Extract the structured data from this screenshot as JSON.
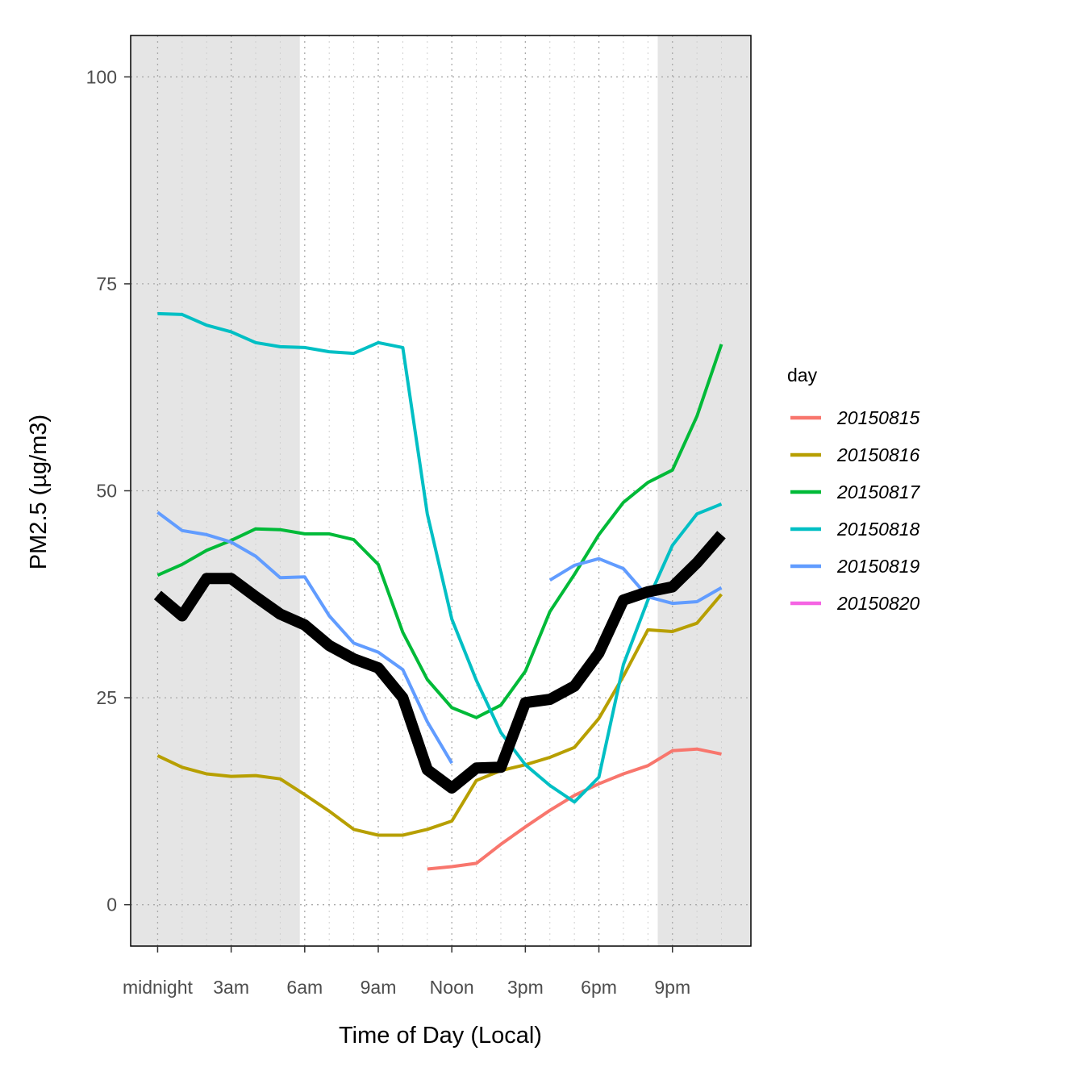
{
  "chart_data": {
    "type": "line",
    "xlabel": "Time of Day (Local)",
    "ylabel": "PM2.5 (µg/m3)",
    "x": [
      0,
      1,
      2,
      3,
      4,
      5,
      6,
      7,
      8,
      9,
      10,
      11,
      12,
      13,
      14,
      15,
      16,
      17,
      18,
      19,
      20,
      21,
      22,
      23
    ],
    "xlim": [
      -1.1,
      24.2
    ],
    "ylim": [
      -5,
      105
    ],
    "x_ticks": [
      {
        "value": 0,
        "label": "midnight"
      },
      {
        "value": 3,
        "label": "3am"
      },
      {
        "value": 6,
        "label": "6am"
      },
      {
        "value": 9,
        "label": "9am"
      },
      {
        "value": 12,
        "label": "Noon"
      },
      {
        "value": 15,
        "label": "3pm"
      },
      {
        "value": 18,
        "label": "6pm"
      },
      {
        "value": 21,
        "label": "9pm"
      }
    ],
    "y_ticks": [
      0,
      25,
      50,
      75,
      100
    ],
    "grid": true,
    "night_shading": [
      [
        -1.1,
        5.8
      ],
      [
        20.4,
        24.2
      ]
    ],
    "night_color": "#e5e5e5",
    "legend": {
      "title": "day",
      "position": "right"
    },
    "series": [
      {
        "name": "20150815",
        "color": "#F8766D",
        "values": [
          null,
          null,
          null,
          null,
          null,
          null,
          null,
          null,
          null,
          null,
          null,
          4.3,
          4.6,
          5.0,
          7.3,
          9.4,
          11.4,
          13.2,
          14.6,
          15.8,
          16.8,
          18.6,
          18.8,
          18.2
        ]
      },
      {
        "name": "20150816",
        "color": "#B79F00",
        "values": [
          18.0,
          16.6,
          15.8,
          15.5,
          15.6,
          15.2,
          13.3,
          11.3,
          9.1,
          8.4,
          8.4,
          9.1,
          10.1,
          15.0,
          16.2,
          16.9,
          17.8,
          19.0,
          22.5,
          27.6,
          33.2,
          33.0,
          34.0,
          37.5
        ]
      },
      {
        "name": "20150817",
        "color": "#00BA38",
        "values": [
          39.8,
          41.1,
          42.8,
          44.0,
          45.4,
          45.3,
          44.8,
          44.8,
          44.1,
          41.1,
          32.9,
          27.2,
          23.8,
          22.6,
          24.1,
          28.2,
          35.4,
          39.9,
          44.7,
          48.6,
          51.0,
          52.5,
          59.0,
          67.7
        ]
      },
      {
        "name": "20150818",
        "color": "#00BFC4",
        "values": [
          71.4,
          71.3,
          70.0,
          69.2,
          67.9,
          67.4,
          67.3,
          66.8,
          66.6,
          67.9,
          67.3,
          47.2,
          34.5,
          27.1,
          20.8,
          16.9,
          14.4,
          12.4,
          15.4,
          29.0,
          36.8,
          43.4,
          47.2,
          48.4
        ]
      },
      {
        "name": "20150819",
        "color": "#619CFF",
        "values": [
          47.4,
          45.2,
          44.7,
          43.8,
          42.1,
          39.5,
          39.6,
          34.9,
          31.6,
          30.5,
          28.4,
          22.1,
          17.1,
          null,
          null,
          null,
          39.2,
          41.0,
          41.8,
          40.6,
          37.2,
          36.4,
          36.6,
          38.3
        ]
      },
      {
        "name": "20150820",
        "color": "#F564E3",
        "values": [
          null,
          null,
          null,
          null,
          null,
          null,
          null,
          null,
          null,
          null,
          null,
          null,
          null,
          null,
          null,
          null,
          null,
          null,
          null,
          null,
          null,
          null,
          null,
          null
        ]
      },
      {
        "name": "",
        "color": "#000000",
        "values": [
          37.4,
          34.9,
          39.4,
          39.4,
          37.2,
          35.1,
          33.8,
          31.3,
          29.7,
          28.6,
          25.0,
          16.3,
          14.1,
          16.5,
          16.6,
          24.4,
          24.8,
          26.4,
          30.4,
          36.8,
          37.8,
          38.4,
          41.3,
          44.7
        ]
      }
    ]
  }
}
